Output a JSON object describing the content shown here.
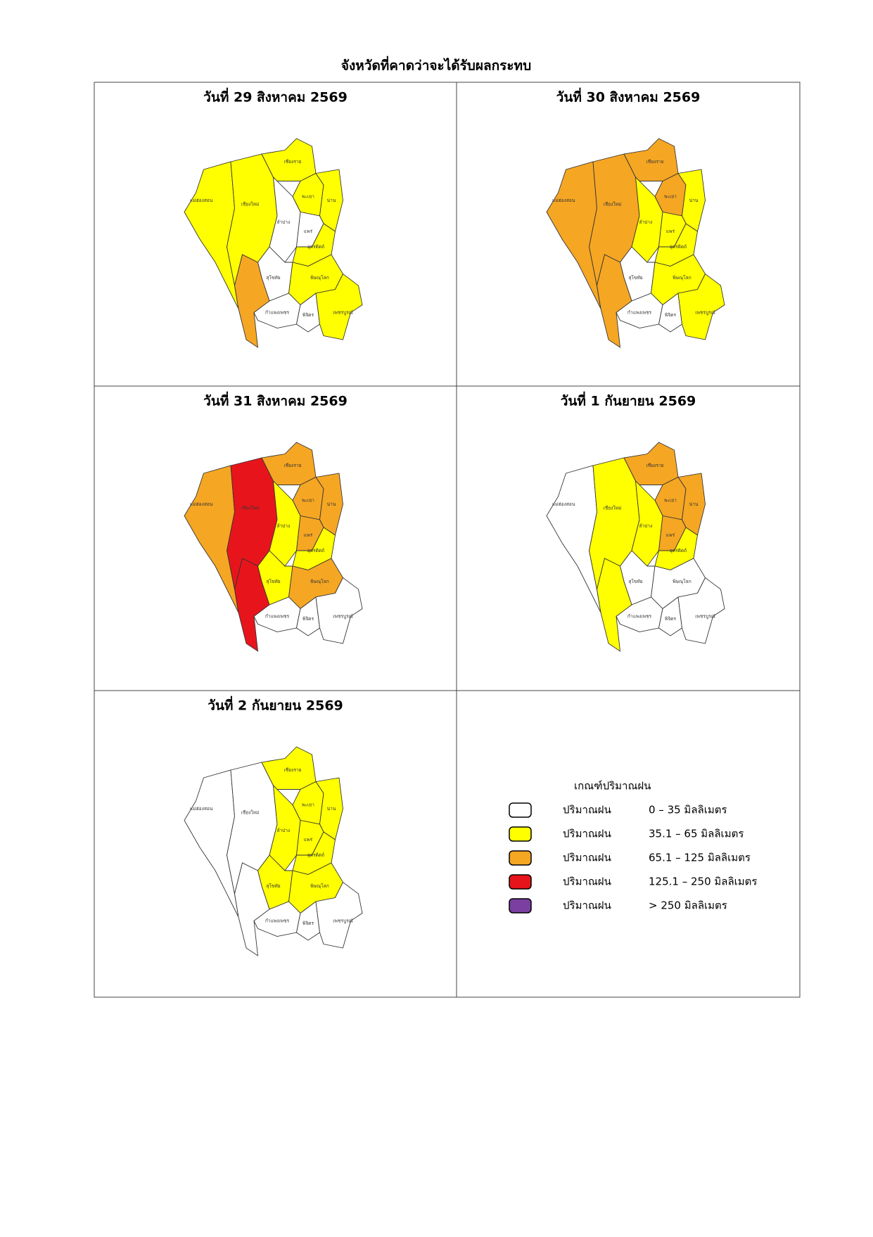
{
  "title": "จังหวัดที่คาดว่าจะได้รับผลกระทบ",
  "panels": [
    {
      "date": "วันที่ 29 สิงหาคม 2569"
    },
    {
      "date": "วันที่ 30 สิงหาคม 2569"
    },
    {
      "date": "วันที่ 31 สิงหาคม 2569"
    },
    {
      "date": "วันที่ 1 กันยายน 2569"
    },
    {
      "date": "วันที่ 2 กันยายน 2569"
    }
  ],
  "map_labels": [
    "แม่ฮ่องสอน",
    "เชียงใหม่",
    "เชียงราย",
    "พะเยา",
    "น่าน",
    "ลำปาง",
    "แพร่",
    "อุตรดิตถ์",
    "สุโขทัย",
    "พิษณุโลก",
    "กำแพงเพชร",
    "พิจิตร",
    "เพชรบูรณ์"
  ],
  "legend": {
    "title": "เกณฑ์ปริมาณฝน",
    "items": [
      {
        "label": "ปริมาณฝน",
        "range": "0 – 35 มิลลิเมตร",
        "color": "#ffffff"
      },
      {
        "label": "ปริมาณฝน",
        "range": "35.1 – 65 มิลลิเมตร",
        "color": "#ffff00"
      },
      {
        "label": "ปริมาณฝน",
        "range": "65.1 – 125 มิลลิเมตร",
        "color": "#f5a623"
      },
      {
        "label": "ปริมาณฝน",
        "range": "125.1 – 250 มิลลิเมตร",
        "color": "#e8141c"
      },
      {
        "label": "ปริมาณฝน",
        "range": "> 250 มิลลิเมตร",
        "color": "#7b3fa0"
      }
    ]
  }
}
